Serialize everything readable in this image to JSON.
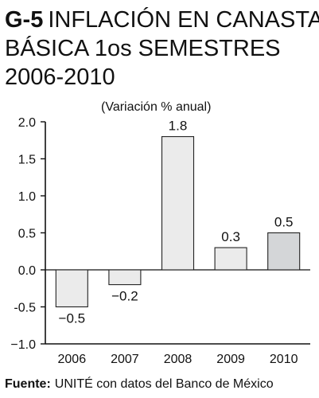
{
  "chart_data": {
    "type": "bar",
    "title_code": "G-5",
    "title_lines": [
      "INFLACIÓN EN CANASTA",
      "BÁSICA 1os SEMESTRES",
      "2006-2010"
    ],
    "ylabel": "(Variación % anual)",
    "categories": [
      "2006",
      "2007",
      "2008",
      "2009",
      "2010"
    ],
    "values": [
      -0.5,
      -0.2,
      1.8,
      0.3,
      0.5
    ],
    "value_labels": [
      "−0.5",
      "−0.2",
      "1.8",
      "0.3",
      "0.5"
    ],
    "bar_colors": [
      "#ebebeb",
      "#ebebeb",
      "#ebebeb",
      "#ebebeb",
      "#d4d6d8"
    ],
    "ylim": [
      -1.0,
      2.0
    ],
    "yticks": [
      2.0,
      1.5,
      1.0,
      0.5,
      0.0,
      -0.5,
      -1.0
    ],
    "ytick_labels": [
      "2.0",
      "1.5",
      "1.0",
      "0.5",
      "0.0",
      "-0.5",
      "−1.0"
    ],
    "grid": false,
    "source_label": "Fuente:",
    "source_text": "UNITÉ con datos del Banco de México"
  }
}
